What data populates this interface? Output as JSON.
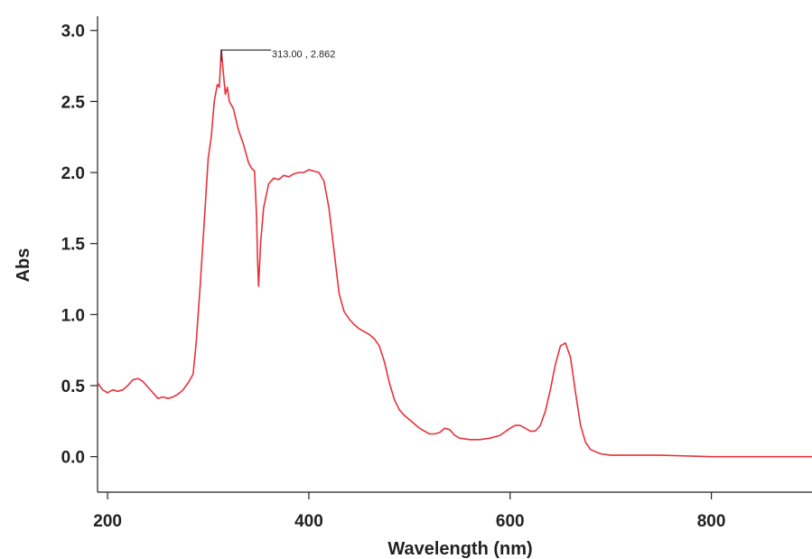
{
  "chart_data": {
    "type": "line",
    "title": "",
    "xlabel": "Wavelength (nm)",
    "ylabel": "Abs",
    "xlim": [
      190,
      900
    ],
    "ylim": [
      -0.25,
      3.1
    ],
    "x_ticks": [
      200,
      400,
      600,
      800
    ],
    "y_ticks": [
      0.0,
      0.5,
      1.0,
      1.5,
      2.0,
      2.5,
      3.0
    ],
    "x_tick_labels": [
      "200",
      "400",
      "600",
      "800"
    ],
    "y_tick_labels": [
      "0.0",
      "0.5",
      "1.0",
      "1.5",
      "2.0",
      "2.5",
      "3.0"
    ],
    "grid": false,
    "legend": "none",
    "series": [
      {
        "color": "#e8323a",
        "points": [
          [
            190,
            0.52
          ],
          [
            195,
            0.47
          ],
          [
            200,
            0.45
          ],
          [
            205,
            0.47
          ],
          [
            210,
            0.46
          ],
          [
            215,
            0.47
          ],
          [
            220,
            0.5
          ],
          [
            225,
            0.54
          ],
          [
            230,
            0.55
          ],
          [
            235,
            0.53
          ],
          [
            240,
            0.49
          ],
          [
            245,
            0.45
          ],
          [
            250,
            0.41
          ],
          [
            255,
            0.42
          ],
          [
            260,
            0.41
          ],
          [
            265,
            0.42
          ],
          [
            270,
            0.44
          ],
          [
            275,
            0.47
          ],
          [
            280,
            0.52
          ],
          [
            285,
            0.58
          ],
          [
            288,
            0.8
          ],
          [
            292,
            1.2
          ],
          [
            296,
            1.65
          ],
          [
            300,
            2.1
          ],
          [
            303,
            2.25
          ],
          [
            306,
            2.5
          ],
          [
            309,
            2.62
          ],
          [
            311,
            2.6
          ],
          [
            313,
            2.862
          ],
          [
            315,
            2.7
          ],
          [
            317,
            2.55
          ],
          [
            319,
            2.6
          ],
          [
            321,
            2.5
          ],
          [
            325,
            2.45
          ],
          [
            330,
            2.3
          ],
          [
            335,
            2.2
          ],
          [
            340,
            2.07
          ],
          [
            343,
            2.03
          ],
          [
            346,
            2.01
          ],
          [
            348,
            1.7
          ],
          [
            349,
            1.4
          ],
          [
            350,
            1.2
          ],
          [
            352,
            1.5
          ],
          [
            355,
            1.75
          ],
          [
            360,
            1.92
          ],
          [
            365,
            1.96
          ],
          [
            370,
            1.95
          ],
          [
            375,
            1.98
          ],
          [
            380,
            1.97
          ],
          [
            385,
            1.99
          ],
          [
            390,
            2.0
          ],
          [
            395,
            2.0
          ],
          [
            400,
            2.02
          ],
          [
            405,
            2.01
          ],
          [
            410,
            2.0
          ],
          [
            415,
            1.94
          ],
          [
            420,
            1.75
          ],
          [
            425,
            1.45
          ],
          [
            430,
            1.15
          ],
          [
            435,
            1.02
          ],
          [
            440,
            0.97
          ],
          [
            445,
            0.93
          ],
          [
            450,
            0.9
          ],
          [
            455,
            0.88
          ],
          [
            460,
            0.86
          ],
          [
            465,
            0.83
          ],
          [
            470,
            0.78
          ],
          [
            475,
            0.67
          ],
          [
            480,
            0.52
          ],
          [
            485,
            0.4
          ],
          [
            490,
            0.33
          ],
          [
            495,
            0.29
          ],
          [
            500,
            0.26
          ],
          [
            505,
            0.23
          ],
          [
            510,
            0.2
          ],
          [
            515,
            0.18
          ],
          [
            520,
            0.16
          ],
          [
            525,
            0.16
          ],
          [
            530,
            0.17
          ],
          [
            535,
            0.2
          ],
          [
            540,
            0.19
          ],
          [
            545,
            0.15
          ],
          [
            550,
            0.13
          ],
          [
            560,
            0.12
          ],
          [
            570,
            0.12
          ],
          [
            580,
            0.13
          ],
          [
            590,
            0.15
          ],
          [
            600,
            0.2
          ],
          [
            605,
            0.22
          ],
          [
            610,
            0.22
          ],
          [
            615,
            0.2
          ],
          [
            620,
            0.18
          ],
          [
            625,
            0.18
          ],
          [
            630,
            0.22
          ],
          [
            635,
            0.32
          ],
          [
            640,
            0.47
          ],
          [
            645,
            0.65
          ],
          [
            650,
            0.78
          ],
          [
            655,
            0.8
          ],
          [
            660,
            0.7
          ],
          [
            665,
            0.45
          ],
          [
            670,
            0.22
          ],
          [
            675,
            0.1
          ],
          [
            680,
            0.05
          ],
          [
            690,
            0.02
          ],
          [
            700,
            0.01
          ],
          [
            750,
            0.01
          ],
          [
            800,
            0.0
          ],
          [
            850,
            0.0
          ],
          [
            900,
            0.0
          ]
        ]
      }
    ],
    "annotation": {
      "text": "313.00 , 2.862",
      "x": 313.0,
      "y": 2.862
    }
  }
}
